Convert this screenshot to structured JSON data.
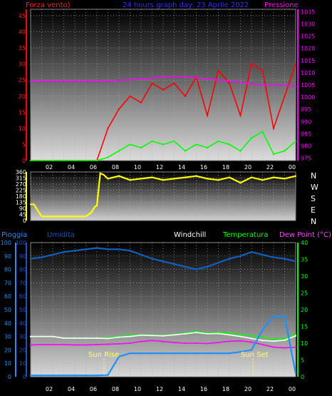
{
  "header": {
    "left_label": "Forza vento)",
    "title": "24 hours graph day:  23 Aprile 2022",
    "right_label": "Pressione"
  },
  "panel2": {
    "right_labels": [
      "N",
      "W",
      "S",
      "E",
      "N"
    ]
  },
  "panel3": {
    "labels": {
      "pioggia": "Pioggia",
      "umidita": "Umidita",
      "windchill": "Windchill",
      "temperatura": "Temperatura",
      "dewpoint": "Dew Point (°C)"
    },
    "annotations": {
      "sunrise": "Sun Rise",
      "sunset": "Sun Set"
    }
  },
  "colors": {
    "wind_gust": "#ff0000",
    "wind_avg": "#00ff00",
    "pressure": "#ff00ff",
    "direction": "#ffff00",
    "rain": "#1e90ff",
    "humidity": "#1060c0",
    "temperature": "#00ff00",
    "dew_point": "#ff00ff",
    "windchill": "#ffffff"
  },
  "chart_data": [
    {
      "type": "line",
      "x_ticks": [
        "02",
        "04",
        "06",
        "08",
        "10",
        "12",
        "14",
        "16",
        "18",
        "20",
        "22",
        "00"
      ],
      "ylim_left": [
        0,
        47
      ],
      "yticks_left": [
        0,
        5,
        10,
        15,
        20,
        25,
        30,
        35,
        40,
        45
      ],
      "ylim_right": [
        974,
        1036
      ],
      "yticks_right": [
        975,
        980,
        985,
        990,
        995,
        1000,
        1005,
        1010,
        1015,
        1020,
        1025,
        1030,
        1035
      ],
      "x": [
        0,
        1,
        2,
        3,
        4,
        5,
        6,
        7,
        8,
        9,
        10,
        11,
        12,
        13,
        14,
        15,
        16,
        17,
        18,
        19,
        20,
        21,
        22,
        23,
        24
      ],
      "series": [
        {
          "key": "gust",
          "axis": "left",
          "values": [
            0,
            0,
            0,
            0,
            0,
            0,
            0,
            10,
            16,
            20,
            18,
            24,
            22,
            24,
            20,
            26,
            14,
            28,
            24,
            14,
            30,
            28,
            10,
            20,
            30
          ]
        },
        {
          "key": "avg",
          "axis": "left",
          "values": [
            0,
            0,
            0,
            0,
            0,
            0,
            0,
            1,
            3,
            5,
            4,
            6,
            5,
            6,
            3,
            5,
            4,
            6,
            5,
            3,
            7,
            9,
            2,
            3,
            6
          ]
        },
        {
          "key": "pressure",
          "axis": "right",
          "values": [
            1006.5,
            1006.5,
            1006.4,
            1006.5,
            1006.4,
            1006.5,
            1006.5,
            1006.6,
            1006.8,
            1007.1,
            1007.4,
            1007.8,
            1008.2,
            1008.5,
            1008.3,
            1007.9,
            1007.5,
            1007.0,
            1006.6,
            1006.0,
            1005.4,
            1005.0,
            1004.9,
            1004.8,
            1004.5
          ]
        }
      ],
      "grid": true
    },
    {
      "type": "line",
      "x_ticks": [
        "02",
        "04",
        "06",
        "08",
        "10",
        "12",
        "14",
        "16",
        "18",
        "20",
        "22",
        "00"
      ],
      "ylim": [
        0,
        360
      ],
      "yticks": [
        0,
        45,
        90,
        135,
        180,
        225,
        270,
        315,
        360
      ],
      "x": [
        0,
        0.3,
        0.6,
        1,
        2,
        3,
        4,
        5,
        5.5,
        5.8,
        6,
        6.3,
        6.6,
        7,
        8,
        9,
        10,
        11,
        12,
        13,
        14,
        15,
        16,
        17,
        18,
        19,
        20,
        21,
        22,
        23,
        24
      ],
      "series": [
        {
          "key": "direction",
          "values": [
            120,
            120,
            80,
            30,
            30,
            30,
            30,
            30,
            60,
            100,
            110,
            350,
            340,
            310,
            330,
            300,
            310,
            320,
            300,
            310,
            320,
            330,
            310,
            300,
            320,
            280,
            320,
            300,
            320,
            310,
            330
          ]
        }
      ],
      "grid": true
    },
    {
      "type": "line",
      "x_ticks": [
        "02",
        "04",
        "06",
        "08",
        "10",
        "12",
        "14",
        "16",
        "18",
        "20",
        "22",
        "00"
      ],
      "ylim_left": [
        0,
        100
      ],
      "yticks_left": [
        0,
        10,
        20,
        30,
        40,
        50,
        60,
        70,
        80,
        90,
        100
      ],
      "ylim_right": [
        0,
        40
      ],
      "yticks_right": [
        0,
        5,
        10,
        15,
        20,
        25,
        30,
        35,
        40
      ],
      "x": [
        0,
        1,
        2,
        3,
        4,
        5,
        6,
        7,
        8,
        9,
        10,
        11,
        12,
        13,
        14,
        15,
        16,
        17,
        18,
        19,
        20,
        21,
        22,
        23,
        24
      ],
      "series": [
        {
          "key": "humidity",
          "axis": "left",
          "values": [
            88,
            89,
            91,
            93,
            94,
            95,
            96,
            95,
            95,
            94,
            91,
            88,
            86,
            84,
            82,
            80,
            82,
            85,
            88,
            90,
            93,
            91,
            89,
            88,
            86
          ]
        },
        {
          "key": "temperature",
          "axis": "right",
          "values": [
            12,
            12,
            12,
            11.5,
            11.5,
            11.5,
            11.5,
            11.6,
            12,
            12.3,
            12.5,
            12.4,
            12.3,
            12.6,
            13,
            13.5,
            13,
            13.2,
            13,
            12.6,
            12.2,
            11.8,
            11.2,
            11.4,
            12.6
          ]
        },
        {
          "key": "windchill",
          "axis": "right",
          "values": [
            12,
            12,
            12,
            11.5,
            11.5,
            11.5,
            11.5,
            11.4,
            11.8,
            12,
            12.4,
            12.3,
            12.2,
            12.5,
            12.8,
            13.2,
            12.8,
            12.9,
            12.5,
            12,
            11.4,
            10.8,
            10.6,
            10.9,
            12.2
          ]
        },
        {
          "key": "dewpoint",
          "axis": "right",
          "values": [
            9.5,
            9.6,
            9.6,
            9.6,
            9.5,
            9.5,
            9.6,
            9.7,
            9.8,
            10,
            10.5,
            10.8,
            10.5,
            10.2,
            10,
            10,
            9.9,
            10.2,
            10.6,
            10.7,
            10.3,
            9.6,
            8.8,
            8.6,
            8.8
          ]
        },
        {
          "key": "rain",
          "axis": "right",
          "values": [
            0.4,
            0.4,
            0.4,
            0.4,
            0.4,
            0.4,
            0.4,
            0.5,
            6,
            7,
            7,
            7,
            7,
            7,
            7,
            7,
            7,
            7,
            7,
            7.4,
            8,
            14,
            18,
            18,
            1
          ]
        }
      ],
      "grid": true
    }
  ]
}
